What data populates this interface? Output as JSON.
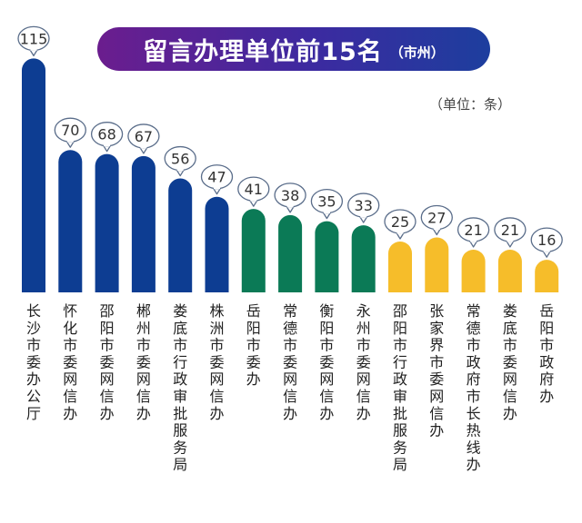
{
  "header": {
    "title": "留言办理单位前15名",
    "title_suffix": "（市州）",
    "unit": "（单位：条）"
  },
  "chart_data": {
    "type": "bar",
    "title": "留言办理单位前15名（市州）",
    "unit": "（单位：条）",
    "categories": [
      "长沙市委办公厅",
      "怀化市委网信办",
      "邵阳市委网信办",
      "郴州市委网信办",
      "娄底市行政审批服务局",
      "株洲市委网信办",
      "岳阳市委办",
      "常德市委网信办",
      "衡阳市委网信办",
      "永州市委网信办",
      "邵阳市行政审批服务局",
      "张家界市委网信办",
      "常德市政府市长热线办",
      "娄底市委网信办",
      "岳阳市政府办"
    ],
    "values": [
      115,
      70,
      68,
      67,
      56,
      47,
      41,
      38,
      35,
      33,
      25,
      27,
      21,
      21,
      16
    ],
    "colors": [
      "#0d3d92",
      "#0d3d92",
      "#0d3d92",
      "#0d3d92",
      "#0d3d92",
      "#0d3d92",
      "#0b7a56",
      "#0b7a56",
      "#0b7a56",
      "#0b7a56",
      "#f6bd2a",
      "#f6bd2a",
      "#f6bd2a",
      "#f6bd2a",
      "#f6bd2a"
    ]
  }
}
